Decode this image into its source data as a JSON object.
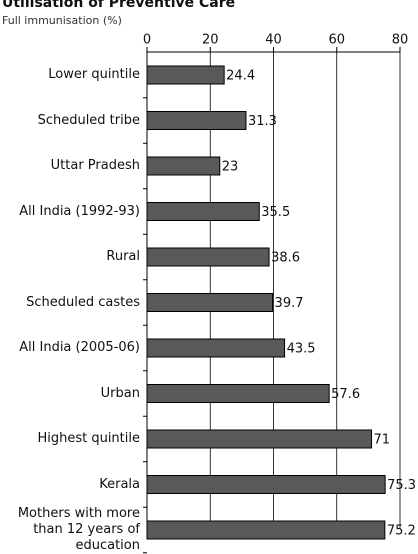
{
  "chart_data": {
    "type": "bar",
    "orientation": "horizontal",
    "title": "Utilisation of Preventive Care",
    "subtitle": "Full immunisation (%)",
    "categories": [
      "Lower quintile",
      "Scheduled tribe",
      "Uttar Pradesh",
      "All India (1992-93)",
      "Rural",
      "Scheduled castes",
      "All India (2005-06)",
      "Urban",
      "Highest quintile",
      "Kerala",
      "Mothers with more than 12 years of education"
    ],
    "values": [
      24.4,
      31.3,
      23,
      35.5,
      38.6,
      39.7,
      43.5,
      57.6,
      71,
      75.3,
      75.2
    ],
    "color": "#595959",
    "xlim": [
      0,
      80
    ],
    "xticks": [
      0,
      20,
      40,
      60,
      80
    ],
    "grid": true
  }
}
